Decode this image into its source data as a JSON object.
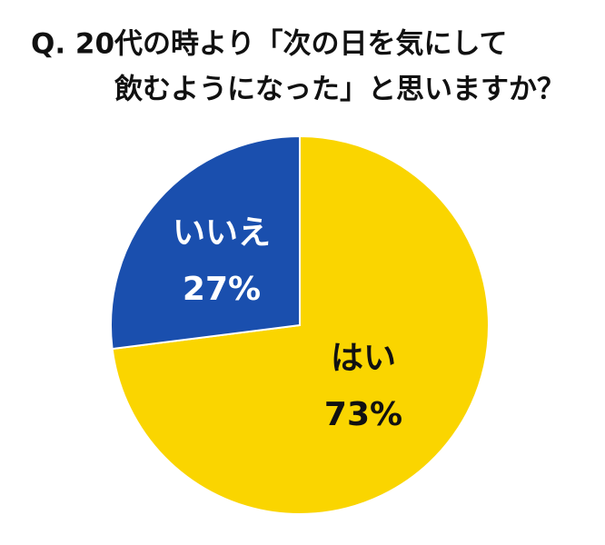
{
  "chart_data": {
    "type": "pie",
    "title": [
      "Q. 20代の時より「次の日を気にして",
      "飲むようになった」と思いますか？"
    ],
    "categories": [
      "はい",
      "いいえ"
    ],
    "values": [
      73,
      27
    ],
    "value_labels": [
      "73%",
      "27%"
    ],
    "colors": [
      "#fad500",
      "#1a4fae"
    ],
    "label_colors": [
      "#111111",
      "#ffffff"
    ]
  }
}
